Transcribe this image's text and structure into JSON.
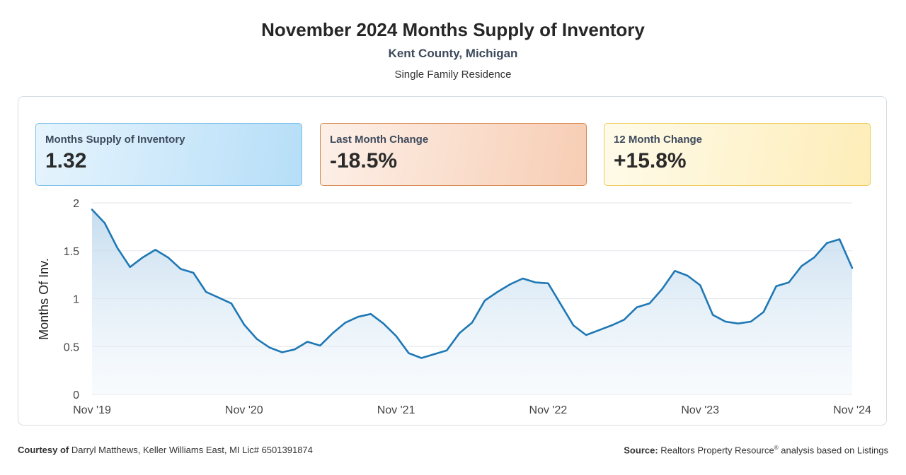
{
  "header": {
    "title": "November 2024 Months Supply of Inventory",
    "location": "Kent County, Michigan",
    "property_type": "Single Family Residence"
  },
  "cards": [
    {
      "label": "Months Supply of Inventory",
      "value": "1.32",
      "color": "#b6def8"
    },
    {
      "label": "Last Month Change",
      "value": "-18.5%",
      "color": "#f7cdb4"
    },
    {
      "label": "12 Month Change",
      "value": "+15.8%",
      "color": "#fdedb8"
    }
  ],
  "chart_data": {
    "type": "area",
    "ylabel": "Months Of Inv.",
    "ylim": [
      0,
      2
    ],
    "yticks": [
      "0",
      "0.5",
      "1",
      "1.5",
      "2"
    ],
    "xtick_labels": [
      "Nov '19",
      "Nov '20",
      "Nov '21",
      "Nov '22",
      "Nov '23",
      "Nov '24"
    ],
    "grid": true,
    "line_color": "#1f78b4",
    "x": [
      "2019-11",
      "2019-12",
      "2020-01",
      "2020-02",
      "2020-03",
      "2020-04",
      "2020-05",
      "2020-06",
      "2020-07",
      "2020-08",
      "2020-09",
      "2020-10",
      "2020-11",
      "2020-12",
      "2021-01",
      "2021-02",
      "2021-03",
      "2021-04",
      "2021-05",
      "2021-06",
      "2021-07",
      "2021-08",
      "2021-09",
      "2021-10",
      "2021-11",
      "2021-12",
      "2022-01",
      "2022-02",
      "2022-03",
      "2022-04",
      "2022-05",
      "2022-06",
      "2022-07",
      "2022-08",
      "2022-09",
      "2022-10",
      "2022-11",
      "2022-12",
      "2023-01",
      "2023-02",
      "2023-03",
      "2023-04",
      "2023-05",
      "2023-06",
      "2023-07",
      "2023-08",
      "2023-09",
      "2023-10",
      "2023-11",
      "2023-12",
      "2024-01",
      "2024-02",
      "2024-03",
      "2024-04",
      "2024-05",
      "2024-06",
      "2024-07",
      "2024-08",
      "2024-09",
      "2024-10",
      "2024-11"
    ],
    "values": [
      1.93,
      1.79,
      1.53,
      1.33,
      1.43,
      1.51,
      1.43,
      1.31,
      1.27,
      1.07,
      1.01,
      0.95,
      0.73,
      0.58,
      0.49,
      0.44,
      0.47,
      0.55,
      0.51,
      0.64,
      0.75,
      0.81,
      0.84,
      0.74,
      0.61,
      0.43,
      0.38,
      0.42,
      0.46,
      0.64,
      0.75,
      0.98,
      1.07,
      1.15,
      1.21,
      1.17,
      1.16,
      0.94,
      0.72,
      0.62,
      0.67,
      0.72,
      0.78,
      0.91,
      0.95,
      1.1,
      1.29,
      1.24,
      1.14,
      0.83,
      0.76,
      0.74,
      0.76,
      0.86,
      1.13,
      1.17,
      1.34,
      1.43,
      1.58,
      1.62,
      1.32
    ]
  },
  "footer": {
    "courtesy_label": "Courtesy of",
    "courtesy_text": "Darryl Matthews, Keller Williams East, MI Lic# 6501391874",
    "source_label": "Source:",
    "source_text": "Realtors Property Resource",
    "source_sup": "®",
    "source_suffix": "analysis based on Listings"
  }
}
